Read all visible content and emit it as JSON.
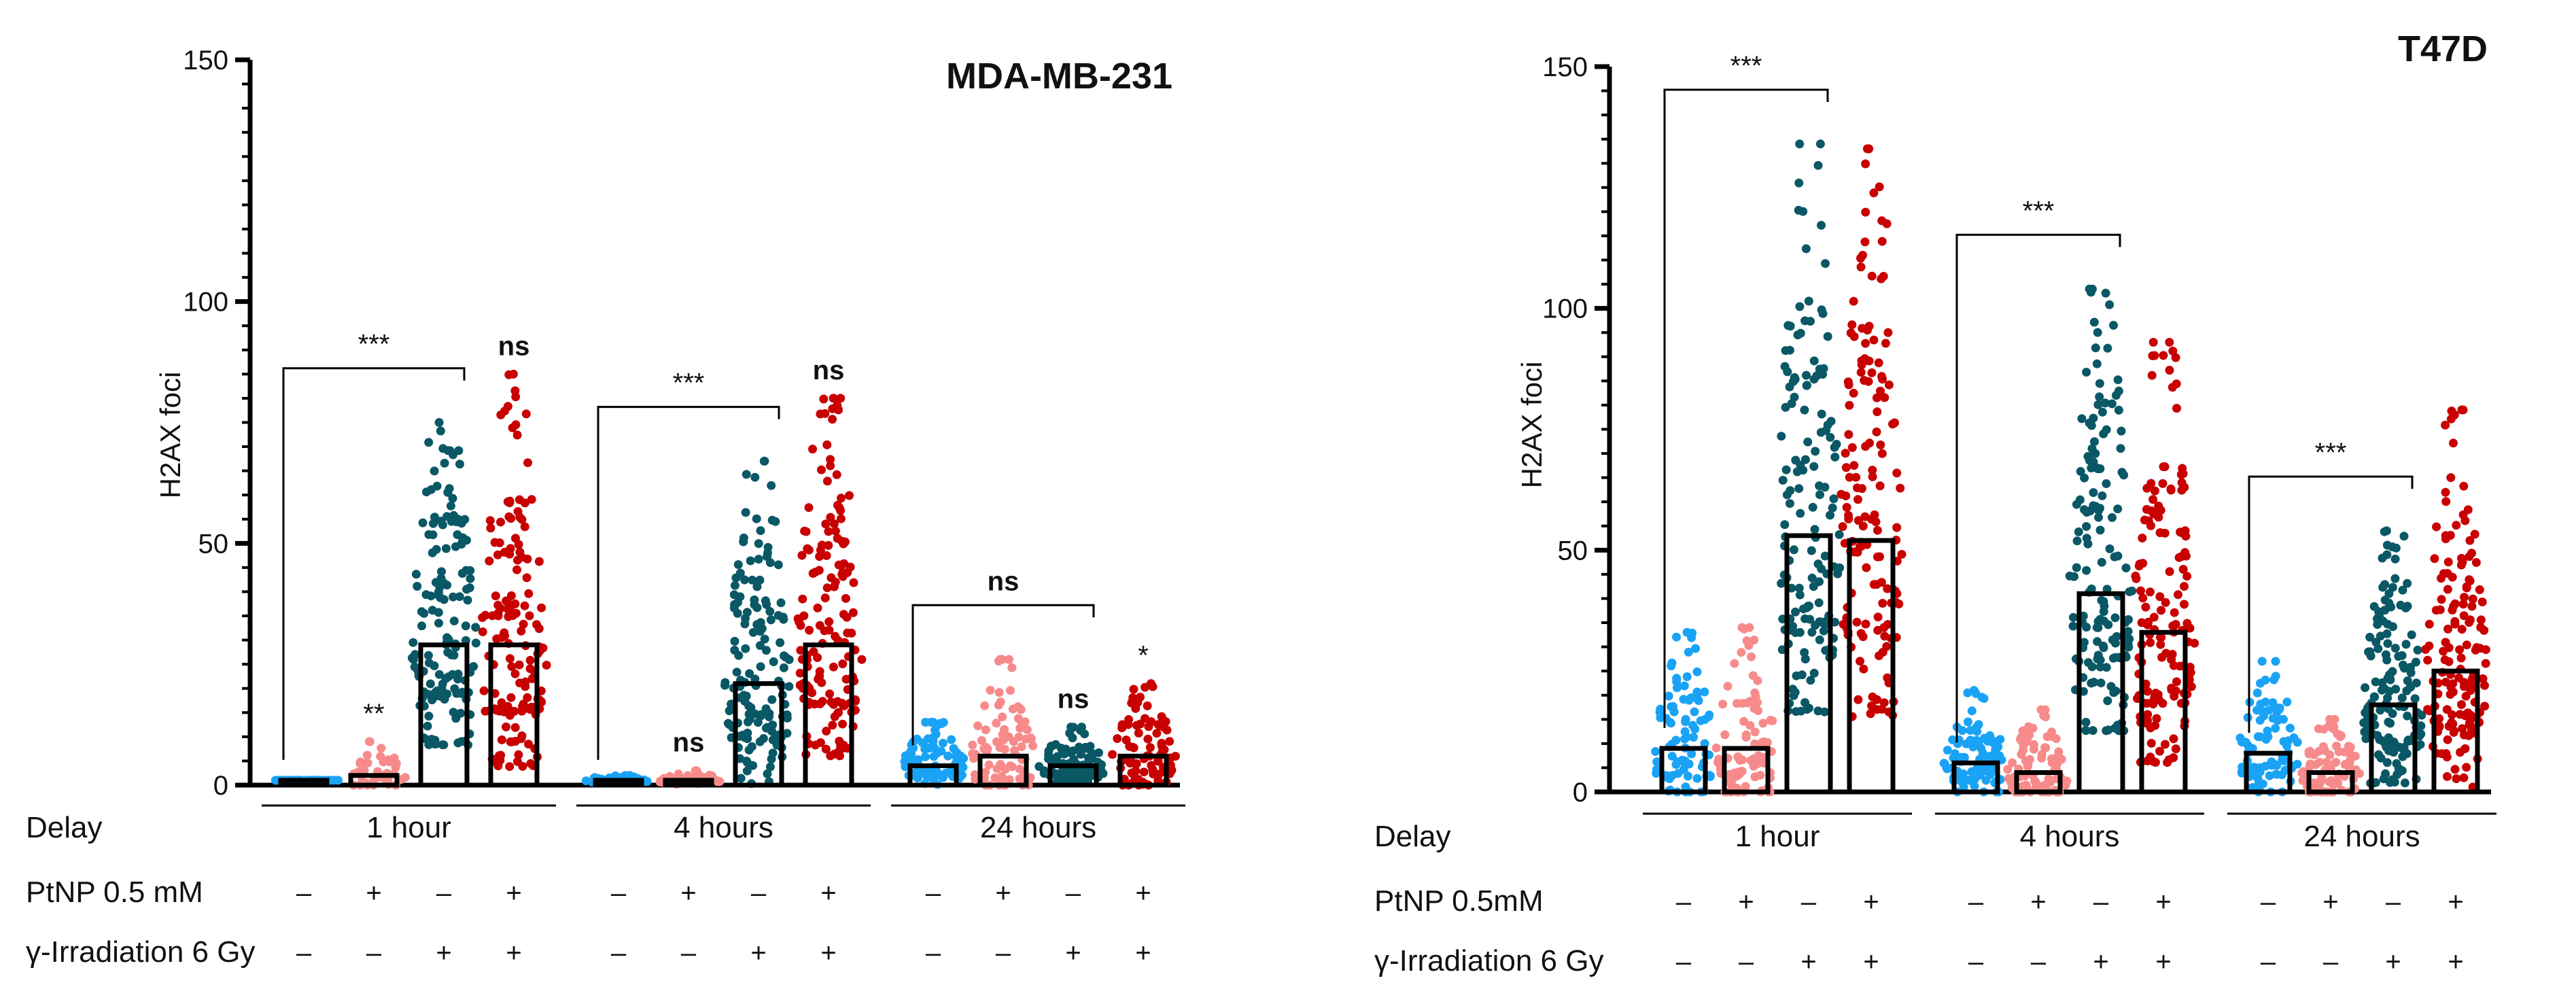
{
  "colors": {
    "control": "#1aa3f5",
    "ptnp": "#f78b8b",
    "irradiation": "#0a5866",
    "combo": "#c80000",
    "axis": "#000000"
  },
  "row_labels": {
    "delay": "Delay",
    "ptnp_left": "PtNP 0.5 mM",
    "ptnp_right": "PtNP 0.5mM",
    "irradiation": "γ-Irradiation 6 Gy"
  },
  "treatment_signs": {
    "ptnp": [
      "–",
      "+",
      "–",
      "+"
    ],
    "irradiation": [
      "–",
      "–",
      "+",
      "+"
    ]
  },
  "chart_data": [
    {
      "type": "bar",
      "title": "MDA-MB-231",
      "ylabel": "H2AX foci",
      "ylim": [
        0,
        150
      ],
      "yticks": [
        0,
        50,
        100,
        150
      ],
      "groups": [
        "1 hour",
        "4 hours",
        "24 hours"
      ],
      "conditions": [
        "control",
        "PtNP",
        "irradiation",
        "PtNP + irradiation"
      ],
      "means": [
        [
          1,
          2,
          29,
          29
        ],
        [
          1,
          1,
          21,
          29
        ],
        [
          4,
          6,
          4,
          6
        ]
      ],
      "point_max": [
        [
          1,
          9,
          75,
          85
        ],
        [
          2,
          3,
          67,
          80
        ],
        [
          13,
          26,
          12,
          21
        ]
      ],
      "significance": [
        {
          "group": 0,
          "condition": 1,
          "label": "**"
        },
        {
          "group": 0,
          "condition": 3,
          "label": "ns"
        },
        {
          "group": 1,
          "condition": 1,
          "label": "ns"
        },
        {
          "group": 1,
          "condition": 3,
          "label": "ns"
        },
        {
          "group": 2,
          "condition": 2,
          "label": "ns"
        },
        {
          "group": 2,
          "condition": 3,
          "label": "*"
        }
      ],
      "brackets": [
        {
          "group": 0,
          "from": 0,
          "to": 2,
          "label": "***"
        },
        {
          "group": 1,
          "from": 0,
          "to": 2,
          "label": "***"
        },
        {
          "group": 2,
          "from": 0,
          "to": 2,
          "label": "ns"
        }
      ]
    },
    {
      "type": "bar",
      "title": "T47D",
      "ylabel": "H2AX foci",
      "ylim": [
        0,
        150
      ],
      "yticks": [
        0,
        50,
        100,
        150
      ],
      "groups": [
        "1 hour",
        "4 hours",
        "24 hours"
      ],
      "conditions": [
        "control",
        "PtNP",
        "irradiation",
        "PtNP + irradiation"
      ],
      "means": [
        [
          9,
          9,
          53,
          52
        ],
        [
          6,
          4,
          41,
          33
        ],
        [
          8,
          4,
          18,
          25
        ]
      ],
      "point_max": [
        [
          33,
          34,
          134,
          133
        ],
        [
          21,
          17,
          104,
          93
        ],
        [
          27,
          15,
          54,
          79
        ]
      ],
      "significance": [],
      "brackets": [
        {
          "group": 0,
          "from": 0,
          "to": 2,
          "label": "***"
        },
        {
          "group": 1,
          "from": 0,
          "to": 2,
          "label": "***"
        },
        {
          "group": 2,
          "from": 0,
          "to": 2,
          "label": "***"
        }
      ]
    }
  ]
}
